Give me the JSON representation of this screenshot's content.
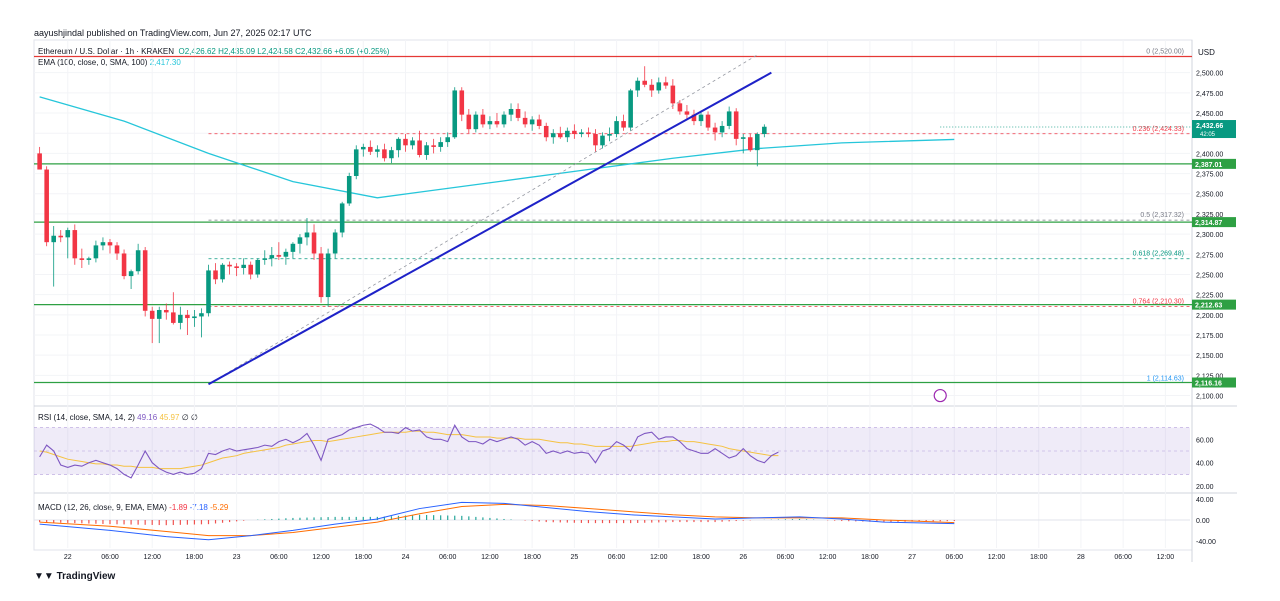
{
  "header": {
    "publisher_line": "aayushjindal published on TradingView.com, Jun 27, 2025 02:17 UTC",
    "symbol": "Ethereum / U.S. Dollar · 1h · KRAKEN",
    "ohlc_open": "O2,426.62",
    "ohlc_high": "H2,435.09",
    "ohlc_low": "L2,424.58",
    "ohlc_close": "C2,432.66",
    "change": "+6.05 (+0.25%)",
    "ema_label": "EMA (100, close, 0, SMA, 100)",
    "ema_value": "2,417.30"
  },
  "footer": {
    "brand": "TradingView"
  },
  "colors": {
    "up": "#089981",
    "down": "#f23645",
    "ema": "#26c6da",
    "trend": "#1e22c8",
    "support": "#2ea043",
    "resist": "#e53935",
    "rsi": "#7e57c2",
    "rsi_ma": "#f5c242",
    "macd": "#2962ff",
    "signal": "#ff6d00"
  },
  "chart_data": {
    "type": "candlestick",
    "price_scale": {
      "label": "USD",
      "ticks": [
        2500,
        2475,
        2450,
        2425,
        2400,
        2375,
        2350,
        2325,
        2300,
        2275,
        2250,
        2225,
        2200,
        2175,
        2150,
        2125,
        2100
      ],
      "tick_labels": [
        "2,500.00",
        "2,475.00",
        "2,450.00",
        "2,425.00",
        "2,400.00",
        "2,375.00",
        "2,350.00",
        "2,325.00",
        "2,300.00",
        "2,275.00",
        "2,250.00",
        "2,225.00",
        "2,200.00",
        "2,175.00",
        "2,150.00",
        "2,125.00",
        "2,100.00"
      ],
      "range": [
        2092,
        2538
      ]
    },
    "time_axis": {
      "labels": [
        "22",
        "06:00",
        "12:00",
        "18:00",
        "23",
        "06:00",
        "12:00",
        "18:00",
        "24",
        "06:00",
        "12:00",
        "18:00",
        "25",
        "06:00",
        "12:00",
        "18:00",
        "26",
        "06:00",
        "12:00",
        "18:00",
        "27",
        "06:00",
        "12:00",
        "18:00",
        "28",
        "06:00",
        "12:00"
      ],
      "hours": [
        0,
        6,
        12,
        18,
        24,
        30,
        36,
        42,
        48,
        54,
        60,
        66,
        72,
        78,
        84,
        90,
        96,
        102,
        108,
        114,
        120,
        126,
        132,
        138,
        144,
        150,
        156
      ],
      "range_hours": [
        -4.8,
        159.5
      ],
      "first_candle_hour": -4
    },
    "candles": [
      [
        2400,
        2408,
        2383,
        2380
      ],
      [
        2380,
        2384,
        2285,
        2290
      ],
      [
        2290,
        2310,
        2235,
        2298
      ],
      [
        2298,
        2305,
        2290,
        2296
      ],
      [
        2296,
        2308,
        2270,
        2305
      ],
      [
        2305,
        2312,
        2262,
        2270
      ],
      [
        2270,
        2282,
        2258,
        2268
      ],
      [
        2268,
        2272,
        2262,
        2270
      ],
      [
        2270,
        2292,
        2265,
        2286
      ],
      [
        2286,
        2296,
        2280,
        2290
      ],
      [
        2290,
        2294,
        2276,
        2286
      ],
      [
        2286,
        2290,
        2268,
        2276
      ],
      [
        2276,
        2281,
        2244,
        2248
      ],
      [
        2248,
        2256,
        2232,
        2254
      ],
      [
        2254,
        2288,
        2250,
        2280
      ],
      [
        2280,
        2284,
        2198,
        2205
      ],
      [
        2205,
        2210,
        2165,
        2195
      ],
      [
        2195,
        2210,
        2165,
        2206
      ],
      [
        2206,
        2214,
        2194,
        2203
      ],
      [
        2203,
        2228,
        2188,
        2190
      ],
      [
        2190,
        2210,
        2182,
        2200
      ],
      [
        2200,
        2206,
        2175,
        2196
      ],
      [
        2196,
        2206,
        2185,
        2198
      ],
      [
        2198,
        2208,
        2172,
        2202
      ],
      [
        2202,
        2262,
        2198,
        2255
      ],
      [
        2255,
        2264,
        2238,
        2244
      ],
      [
        2244,
        2264,
        2240,
        2262
      ],
      [
        2262,
        2266,
        2250,
        2260
      ],
      [
        2260,
        2264,
        2248,
        2258
      ],
      [
        2258,
        2270,
        2250,
        2262
      ],
      [
        2262,
        2266,
        2244,
        2250
      ],
      [
        2250,
        2270,
        2246,
        2268
      ],
      [
        2268,
        2280,
        2262,
        2270
      ],
      [
        2270,
        2284,
        2260,
        2274
      ],
      [
        2274,
        2290,
        2268,
        2272
      ],
      [
        2272,
        2282,
        2262,
        2278
      ],
      [
        2278,
        2290,
        2270,
        2288
      ],
      [
        2288,
        2300,
        2276,
        2296
      ],
      [
        2296,
        2320,
        2286,
        2302
      ],
      [
        2302,
        2312,
        2268,
        2276
      ],
      [
        2276,
        2284,
        2215,
        2222
      ],
      [
        2222,
        2282,
        2210,
        2276
      ],
      [
        2276,
        2306,
        2270,
        2302
      ],
      [
        2302,
        2340,
        2296,
        2338
      ],
      [
        2338,
        2376,
        2335,
        2372
      ],
      [
        2372,
        2410,
        2368,
        2405
      ],
      [
        2405,
        2412,
        2396,
        2408
      ],
      [
        2408,
        2416,
        2398,
        2402
      ],
      [
        2402,
        2410,
        2395,
        2405
      ],
      [
        2405,
        2412,
        2390,
        2394
      ],
      [
        2394,
        2408,
        2388,
        2404
      ],
      [
        2404,
        2420,
        2395,
        2418
      ],
      [
        2418,
        2424,
        2402,
        2410
      ],
      [
        2410,
        2420,
        2405,
        2416
      ],
      [
        2416,
        2428,
        2395,
        2398
      ],
      [
        2398,
        2414,
        2392,
        2410
      ],
      [
        2410,
        2418,
        2400,
        2408
      ],
      [
        2408,
        2420,
        2402,
        2414
      ],
      [
        2414,
        2426,
        2408,
        2420
      ],
      [
        2420,
        2482,
        2418,
        2478
      ],
      [
        2478,
        2482,
        2440,
        2448
      ],
      [
        2448,
        2455,
        2425,
        2430
      ],
      [
        2430,
        2452,
        2426,
        2448
      ],
      [
        2448,
        2455,
        2432,
        2436
      ],
      [
        2436,
        2446,
        2430,
        2440
      ],
      [
        2440,
        2450,
        2432,
        2436
      ],
      [
        2436,
        2452,
        2432,
        2448
      ],
      [
        2448,
        2462,
        2440,
        2455
      ],
      [
        2455,
        2462,
        2440,
        2444
      ],
      [
        2444,
        2452,
        2432,
        2436
      ],
      [
        2436,
        2446,
        2428,
        2442
      ],
      [
        2442,
        2448,
        2430,
        2434
      ],
      [
        2434,
        2438,
        2415,
        2420
      ],
      [
        2420,
        2430,
        2412,
        2425
      ],
      [
        2425,
        2433,
        2418,
        2420
      ],
      [
        2420,
        2432,
        2414,
        2428
      ],
      [
        2428,
        2436,
        2418,
        2424
      ],
      [
        2424,
        2430,
        2420,
        2426
      ],
      [
        2426,
        2432,
        2420,
        2424
      ],
      [
        2424,
        2430,
        2402,
        2410
      ],
      [
        2410,
        2426,
        2406,
        2422
      ],
      [
        2422,
        2432,
        2415,
        2424
      ],
      [
        2424,
        2446,
        2420,
        2440
      ],
      [
        2440,
        2448,
        2428,
        2432
      ],
      [
        2432,
        2480,
        2428,
        2478
      ],
      [
        2478,
        2494,
        2470,
        2490
      ],
      [
        2490,
        2508,
        2482,
        2485
      ],
      [
        2485,
        2492,
        2470,
        2478
      ],
      [
        2478,
        2494,
        2474,
        2488
      ],
      [
        2488,
        2495,
        2480,
        2484
      ],
      [
        2484,
        2492,
        2455,
        2462
      ],
      [
        2462,
        2466,
        2448,
        2452
      ],
      [
        2452,
        2460,
        2442,
        2448
      ],
      [
        2448,
        2454,
        2435,
        2440
      ],
      [
        2440,
        2452,
        2434,
        2448
      ],
      [
        2448,
        2452,
        2428,
        2432
      ],
      [
        2432,
        2438,
        2416,
        2426
      ],
      [
        2426,
        2440,
        2420,
        2434
      ],
      [
        2434,
        2458,
        2430,
        2452
      ],
      [
        2452,
        2456,
        2410,
        2418
      ],
      [
        2418,
        2424,
        2400,
        2420
      ],
      [
        2420,
        2424,
        2402,
        2404
      ],
      [
        2404,
        2426,
        2384,
        2424
      ],
      [
        2424,
        2436,
        2420,
        2433
      ]
    ],
    "ema100": [
      [
        -4,
        2470
      ],
      [
        8,
        2440
      ],
      [
        20,
        2400
      ],
      [
        32,
        2365
      ],
      [
        44,
        2345
      ],
      [
        50,
        2352
      ],
      [
        62,
        2366
      ],
      [
        74,
        2380
      ],
      [
        86,
        2394
      ],
      [
        98,
        2406
      ],
      [
        110,
        2413
      ],
      [
        126,
        2417.3
      ]
    ],
    "horizontal_levels": [
      {
        "price": 2520,
        "kind": "resistance"
      },
      {
        "price": 2387.01,
        "kind": "support",
        "label": "2,387.01"
      },
      {
        "price": 2314.87,
        "kind": "support",
        "label": "2,314.87"
      },
      {
        "price": 2212.63,
        "kind": "support",
        "label": "2,212.63"
      },
      {
        "price": 2116.16,
        "kind": "support",
        "label": "2,116.16"
      }
    ],
    "fibonacci": [
      {
        "ratio": "0",
        "price": 2520.0,
        "label": "0 (2,520.00)"
      },
      {
        "ratio": "0.236",
        "price": 2424.33,
        "label": "0.236 (2,424.33)"
      },
      {
        "ratio": "0.5",
        "price": 2317.32,
        "label": "0.5 (2,317.32)"
      },
      {
        "ratio": "0.618",
        "price": 2269.48,
        "label": "0.618 (2,269.48)"
      },
      {
        "ratio": "0.764",
        "price": 2210.3,
        "label": "0.764 (2,210.30)"
      },
      {
        "ratio": "1",
        "price": 2114.63,
        "label": "1 (2,114.63)"
      }
    ],
    "trendline": [
      [
        20,
        2114
      ],
      [
        100,
        2500
      ]
    ],
    "fib_anchor_line": [
      [
        20,
        2114
      ],
      [
        98,
        2522
      ]
    ],
    "last_price": {
      "value": 2432.66,
      "label": "2,432.66",
      "countdown": "42:05"
    },
    "rsi": {
      "label": "RSI (14, close, SMA, 14, 2)",
      "value": "49.16",
      "ma_value": "45.97",
      "extra": "∅ ∅",
      "ticks": [
        "60.00",
        "40.00",
        "20.00"
      ],
      "tick_values": [
        60,
        40,
        20
      ],
      "range": [
        15,
        85
      ],
      "band": [
        30,
        70
      ],
      "values": [
        45,
        55,
        50,
        38,
        36,
        38,
        37,
        40,
        42,
        40,
        38,
        35,
        30,
        27,
        38,
        50,
        40,
        35,
        32,
        30,
        32,
        30,
        31,
        35,
        48,
        47,
        50,
        52,
        50,
        51,
        52,
        53,
        55,
        54,
        58,
        60,
        57,
        60,
        65,
        55,
        42,
        60,
        62,
        64,
        68,
        70,
        72,
        73,
        70,
        66,
        66,
        65,
        70,
        67,
        68,
        62,
        60,
        60,
        58,
        72,
        62,
        58,
        58,
        56,
        60,
        58,
        60,
        62,
        60,
        55,
        58,
        55,
        48,
        50,
        48,
        50,
        48,
        49,
        48,
        40,
        50,
        52,
        58,
        55,
        50,
        62,
        65,
        66,
        60,
        62,
        62,
        58,
        52,
        50,
        48,
        48,
        52,
        48,
        44,
        46,
        52,
        46,
        42,
        40,
        46,
        49
      ],
      "ma": [
        50,
        49,
        47,
        45,
        43,
        42,
        41,
        40,
        39,
        39,
        38,
        38,
        37,
        37,
        36,
        36,
        36,
        35,
        35,
        35,
        35,
        36,
        37,
        38,
        40,
        42,
        44,
        45,
        46,
        48,
        49,
        50,
        51,
        52,
        53,
        55,
        56,
        57,
        58,
        59,
        59,
        58,
        59,
        60,
        61,
        62,
        63,
        64,
        65,
        66,
        66,
        66,
        66,
        67,
        67,
        66,
        66,
        65,
        64,
        64,
        64,
        63,
        62,
        62,
        62,
        61,
        61,
        61,
        61,
        60,
        60,
        60,
        59,
        58,
        57,
        57,
        56,
        56,
        55,
        54,
        54,
        54,
        54,
        54,
        54,
        55,
        56,
        57,
        58,
        58,
        59,
        59,
        58,
        58,
        57,
        56,
        55,
        54,
        52,
        51,
        50,
        49,
        48,
        47,
        46,
        46
      ]
    },
    "macd": {
      "label": "MACD (12, 26, close, 9, EMA, EMA)",
      "hist_value": "-1.89",
      "macd_value": "-7.18",
      "signal_value": "-5.29",
      "ticks": [
        "40.00",
        "0.00",
        "-40.00"
      ],
      "tick_values": [
        40,
        0,
        -40
      ],
      "range": [
        -50,
        50
      ],
      "macd_line": [
        [
          -4,
          -8
        ],
        [
          6,
          -20
        ],
        [
          14,
          -32
        ],
        [
          20,
          -38
        ],
        [
          26,
          -30
        ],
        [
          32,
          -20
        ],
        [
          38,
          -8
        ],
        [
          44,
          2
        ],
        [
          50,
          22
        ],
        [
          56,
          34
        ],
        [
          62,
          32
        ],
        [
          68,
          24
        ],
        [
          74,
          16
        ],
        [
          80,
          10
        ],
        [
          86,
          6
        ],
        [
          92,
          2
        ],
        [
          98,
          4
        ],
        [
          104,
          6
        ],
        [
          110,
          2
        ],
        [
          116,
          -4
        ],
        [
          126,
          -7
        ]
      ],
      "signal_line": [
        [
          -4,
          -4
        ],
        [
          6,
          -12
        ],
        [
          14,
          -22
        ],
        [
          20,
          -30
        ],
        [
          26,
          -30
        ],
        [
          32,
          -24
        ],
        [
          38,
          -14
        ],
        [
          44,
          -4
        ],
        [
          50,
          12
        ],
        [
          56,
          26
        ],
        [
          62,
          30
        ],
        [
          68,
          28
        ],
        [
          74,
          22
        ],
        [
          80,
          16
        ],
        [
          86,
          10
        ],
        [
          92,
          6
        ],
        [
          98,
          4
        ],
        [
          104,
          4
        ],
        [
          110,
          4
        ],
        [
          116,
          0
        ],
        [
          126,
          -5
        ]
      ]
    }
  }
}
